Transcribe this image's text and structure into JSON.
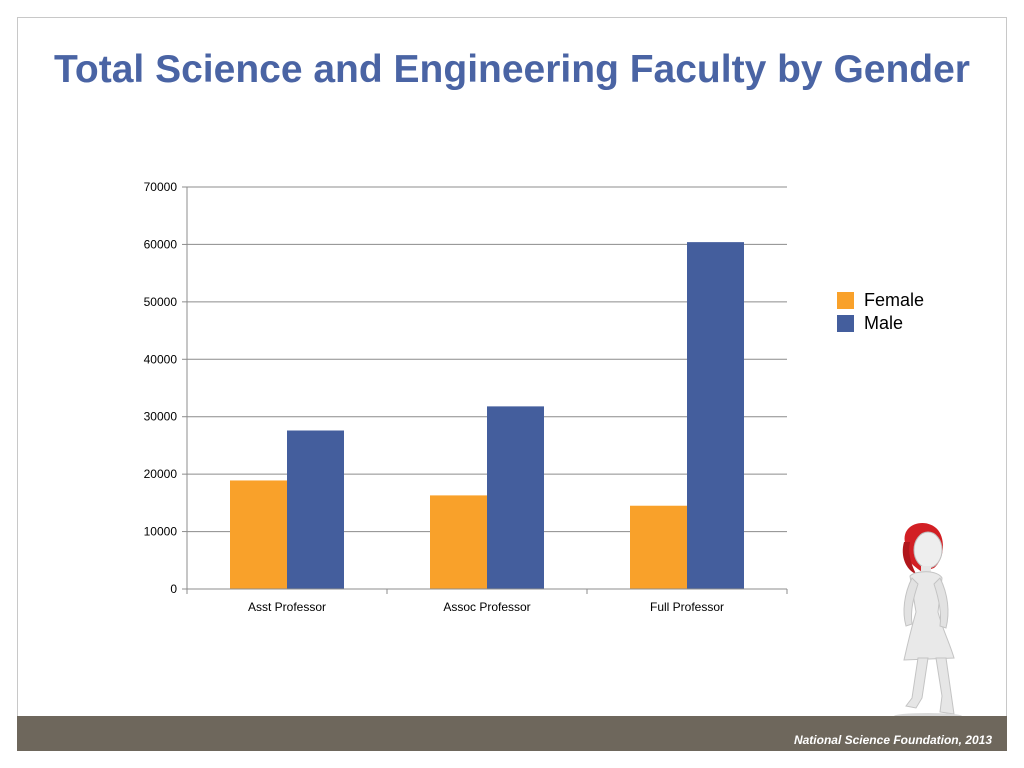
{
  "slide": {
    "title": "Total Science and Engineering Faculty by Gender",
    "source": "National Science Foundation, 2013"
  },
  "colors": {
    "title": "#4a64a4",
    "female": "#f9a12a",
    "male": "#445e9d",
    "footer_band": "#6e675c"
  },
  "chart_data": {
    "type": "bar",
    "title": "",
    "xlabel": "",
    "ylabel": "",
    "categories": [
      "Asst Professor",
      "Assoc Professor",
      "Full Professor"
    ],
    "series": [
      {
        "name": "Female",
        "color": "#f9a12a",
        "values": [
          18900,
          16300,
          14500
        ]
      },
      {
        "name": "Male",
        "color": "#445e9d",
        "values": [
          27600,
          31800,
          60400
        ]
      }
    ],
    "ylim": [
      0,
      70000
    ],
    "yticks": [
      0,
      10000,
      20000,
      30000,
      40000,
      50000,
      60000,
      70000
    ],
    "ytick_labels": [
      "0",
      "10000",
      "20000",
      "30000",
      "40000",
      "50000",
      "60000",
      "70000"
    ],
    "grid": true,
    "legend_position": "right"
  },
  "decoration": {
    "figure_icon": "walking-woman-figure-icon"
  }
}
